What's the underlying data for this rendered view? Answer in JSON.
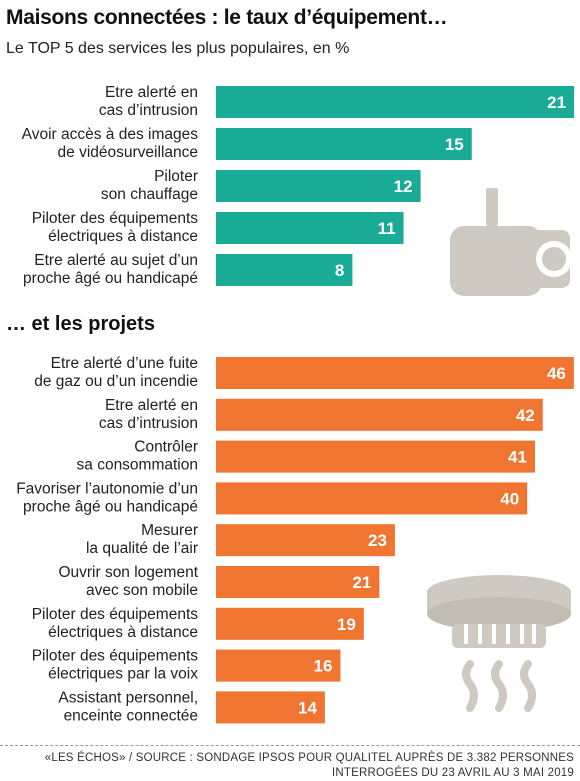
{
  "title": "Maisons connectées : le taux d’équipement…",
  "subtitle": "Le TOP 5 des services les plus populaires, en %",
  "section2_title": "… et les projets",
  "footer": {
    "line1": "«LES ÉCHOS» / SOURCE : SONDAGE IPSOS POUR QUALITEL AUPRÈS DE 3.382 PERSONNES",
    "line2": "INTERROGÉES DU 23 AVRIL AU 3 MAI 2019"
  },
  "icons": {
    "top": "security-camera-icon",
    "bottom": "smoke-detector-icon"
  },
  "colors": {
    "teal": "#1aab96",
    "orange": "#ef7531",
    "icon_grey": "#cfcac1"
  },
  "chart_data": [
    {
      "type": "bar",
      "orientation": "horizontal",
      "title": "Maisons connectées : le taux d’équipement…",
      "subtitle": "Le TOP 5 des services les plus populaires, en %",
      "categories": [
        [
          "Etre alerté en",
          "cas d’intrusion"
        ],
        [
          "Avoir accès à des images",
          "de vidéosurveillance"
        ],
        [
          "Piloter",
          "son chauffage"
        ],
        [
          "Piloter des équipements",
          "électriques à distance"
        ],
        [
          "Etre alerté au sujet d’un",
          "proche âgé ou handicapé"
        ]
      ],
      "values": [
        21,
        15,
        12,
        11,
        8
      ],
      "color": "#1aab96",
      "grid": false,
      "legend": "none"
    },
    {
      "type": "bar",
      "orientation": "horizontal",
      "title": "… et les projets",
      "categories": [
        [
          "Etre alerté d’une fuite",
          "de gaz ou d’un incendie"
        ],
        [
          "Etre alerté en",
          "cas d’intrusion"
        ],
        [
          "Contrôler",
          "sa consommation"
        ],
        [
          "Favoriser l’autonomie d’un",
          "proche âgé ou handicapé"
        ],
        [
          "Mesurer",
          "la qualité de l’air"
        ],
        [
          "Ouvrir son logement",
          "avec son mobile"
        ],
        [
          "Piloter des équipements",
          "électriques à distance"
        ],
        [
          "Piloter des équipements",
          "électriques par la voix"
        ],
        [
          "Assistant personnel,",
          "enceinte connectée"
        ]
      ],
      "values": [
        46,
        42,
        41,
        40,
        23,
        21,
        19,
        16,
        14
      ],
      "color": "#ef7531",
      "grid": false,
      "legend": "none"
    }
  ]
}
